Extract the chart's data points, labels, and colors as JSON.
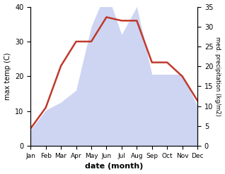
{
  "months": [
    "Jan",
    "Feb",
    "Mar",
    "Apr",
    "May",
    "Jun",
    "Jul",
    "Aug",
    "Sep",
    "Oct",
    "Nov",
    "Dec"
  ],
  "temperature": [
    5,
    11,
    23,
    30,
    30,
    37,
    36,
    36,
    24,
    24,
    20,
    13
  ],
  "precipitation": [
    4,
    9,
    11,
    14,
    30,
    39,
    28,
    35,
    18,
    18,
    18,
    10
  ],
  "temp_color": "#c0392b",
  "precip_color_fill": "#c5cef0",
  "ylabel_left": "max temp (C)",
  "ylabel_right": "med. precipitation (kg/m2)",
  "xlabel": "date (month)",
  "ylim_left": [
    0,
    40
  ],
  "ylim_right": [
    0,
    35
  ],
  "yticks_left": [
    0,
    10,
    20,
    30,
    40
  ],
  "yticks_right": [
    0,
    5,
    10,
    15,
    20,
    25,
    30,
    35
  ],
  "bg_color": "#ffffff",
  "line_width": 1.8
}
